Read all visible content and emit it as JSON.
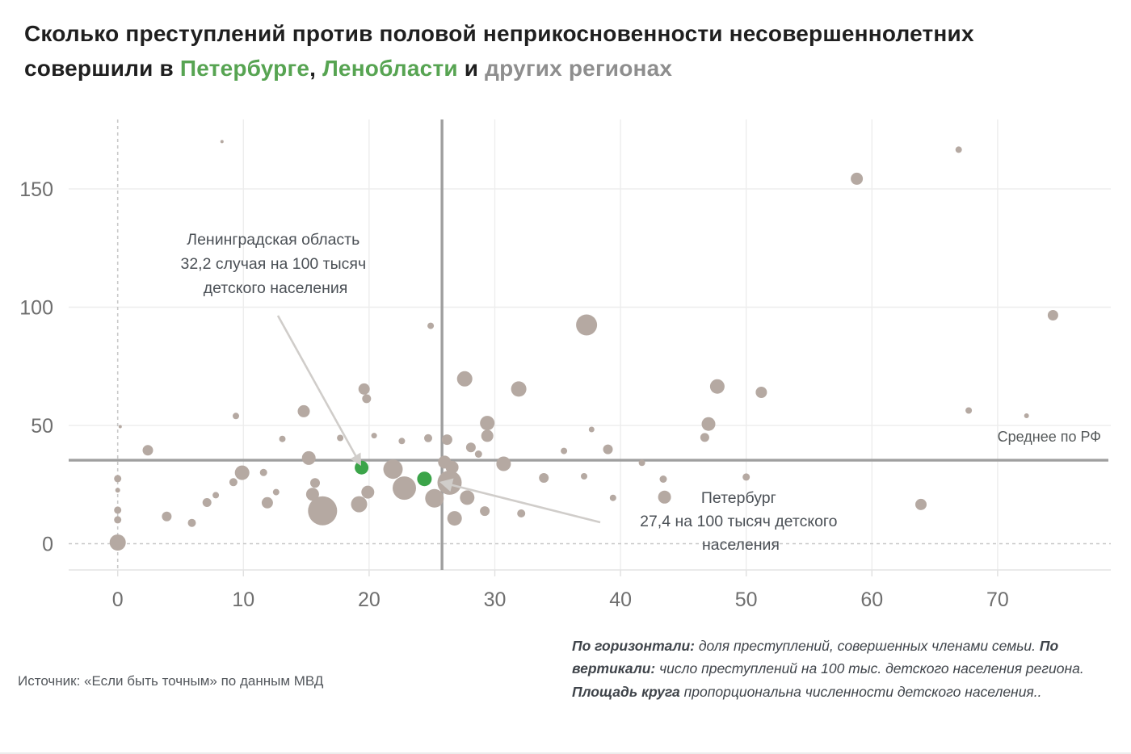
{
  "title": {
    "line1": "Сколько преступлений против половой неприкосновенности несовершеннолетних",
    "line2_parts": [
      {
        "text": "совершили в ",
        "color": "dark"
      },
      {
        "text": "Петербурге",
        "color": "green"
      },
      {
        "text": ", ",
        "color": "dark"
      },
      {
        "text": "Ленобласти",
        "color": "green"
      },
      {
        "text": " и ",
        "color": "dark"
      },
      {
        "text": "других регионах",
        "color": "gray"
      }
    ]
  },
  "annotations": {
    "leningrad": {
      "lines": [
        "Ленинградская область",
        "32,2 случая на 100 тысяч",
        "детского населения"
      ]
    },
    "petersburg": {
      "lines": [
        "Петербург",
        "27,4 на 100 тысяч детского",
        "населения"
      ]
    }
  },
  "footer": {
    "source": "Источник: «Если быть точным» по данным МВД",
    "note_parts": [
      {
        "text": "По горизонтали:",
        "bold": true
      },
      {
        "text": " доля преступлений, совершенных членами семьи. ",
        "bold": false
      },
      {
        "text": "По вертикали:",
        "bold": true
      },
      {
        "text": " число преступлений на 100 тыс. детского населения региона. ",
        "bold": false
      },
      {
        "text": "Площадь круга",
        "bold": true
      },
      {
        "text": " пропорциональна численности детского населения..",
        "bold": false
      }
    ]
  },
  "chart_data": {
    "type": "scatter",
    "title": "Преступления против половой неприкосновенности несовершеннолетних по регионам РФ",
    "xlabel": "доля преступлений, совершенных членами семьи, %",
    "ylabel": "число преступлений на 100 тыс. детского населения региона",
    "x_ticks": [
      0,
      10,
      20,
      30,
      40,
      50,
      60,
      70
    ],
    "y_ticks": [
      0,
      50,
      100,
      150
    ],
    "xlim": [
      -4,
      79
    ],
    "ylim": [
      -11,
      179
    ],
    "grid": true,
    "mean_x": 25.8,
    "mean_y": 35.3,
    "mean_label": "Среднее по РФ",
    "colors": {
      "bubble": "#b5a9a2",
      "highlight": "#3ba449",
      "mean_line": "#9f9f9f",
      "grid": "#ededed",
      "dashed": "#c8c8c8",
      "arrow": "#d0cdca"
    },
    "size_note": "площадь круга пропорциональна численности детского населения",
    "highlighted": [
      {
        "name": "Ленинградская область",
        "x": 19.4,
        "y": 32.2
      },
      {
        "name": "Петербург",
        "x": 24.4,
        "y": 27.4
      }
    ],
    "points": [
      {
        "x": 0,
        "y": 0.5,
        "r": 10
      },
      {
        "x": 0,
        "y": 10.1,
        "r": 4.5
      },
      {
        "x": 0,
        "y": 14.2,
        "r": 4.5
      },
      {
        "x": 0,
        "y": 22.6,
        "r": 3
      },
      {
        "x": 0,
        "y": 27.5,
        "r": 4.5
      },
      {
        "x": 0.2,
        "y": 49.5,
        "r": 2
      },
      {
        "x": 2.4,
        "y": 39.5,
        "r": 6.5
      },
      {
        "x": 3.9,
        "y": 11.5,
        "r": 6
      },
      {
        "x": 5.9,
        "y": 8.8,
        "r": 5
      },
      {
        "x": 7.1,
        "y": 17.4,
        "r": 5.5
      },
      {
        "x": 7.8,
        "y": 20.5,
        "r": 4
      },
      {
        "x": 8.3,
        "y": 170,
        "r": 2
      },
      {
        "x": 9.4,
        "y": 54,
        "r": 4
      },
      {
        "x": 9.9,
        "y": 30,
        "r": 9
      },
      {
        "x": 11.6,
        "y": 30.1,
        "r": 4.5
      },
      {
        "x": 9.2,
        "y": 26,
        "r": 5
      },
      {
        "x": 11.9,
        "y": 17.3,
        "r": 7
      },
      {
        "x": 12.6,
        "y": 21.8,
        "r": 4
      },
      {
        "x": 13.1,
        "y": 44.3,
        "r": 4
      },
      {
        "x": 14.8,
        "y": 56,
        "r": 7.5
      },
      {
        "x": 15.2,
        "y": 36.2,
        "r": 8.5
      },
      {
        "x": 15.7,
        "y": 25.7,
        "r": 6
      },
      {
        "x": 15.5,
        "y": 20.9,
        "r": 8
      },
      {
        "x": 16.3,
        "y": 13.9,
        "r": 18
      },
      {
        "x": 17.7,
        "y": 44.7,
        "r": 4
      },
      {
        "x": 19.2,
        "y": 16.7,
        "r": 10
      },
      {
        "x": 19.9,
        "y": 21.8,
        "r": 8
      },
      {
        "x": 19.6,
        "y": 65.4,
        "r": 7
      },
      {
        "x": 19.8,
        "y": 61.3,
        "r": 5.5
      },
      {
        "x": 20.4,
        "y": 45.7,
        "r": 3.5
      },
      {
        "x": 22.6,
        "y": 43.4,
        "r": 4
      },
      {
        "x": 24.7,
        "y": 44.6,
        "r": 5
      },
      {
        "x": 24.9,
        "y": 92.1,
        "r": 4
      },
      {
        "x": 21.9,
        "y": 31.5,
        "r": 12
      },
      {
        "x": 22.8,
        "y": 23.5,
        "r": 14.5
      },
      {
        "x": 24.4,
        "y": 27.4,
        "r": 9,
        "green": true,
        "name": "Петербург"
      },
      {
        "x": 25.2,
        "y": 19.2,
        "r": 11.5
      },
      {
        "x": 26.4,
        "y": 25.8,
        "r": 15
      },
      {
        "x": 26,
        "y": 34.5,
        "r": 8
      },
      {
        "x": 26.2,
        "y": 44,
        "r": 6.5
      },
      {
        "x": 26.6,
        "y": 32.3,
        "r": 8
      },
      {
        "x": 26.8,
        "y": 10.7,
        "r": 9
      },
      {
        "x": 27.8,
        "y": 19.5,
        "r": 9
      },
      {
        "x": 29.2,
        "y": 13.8,
        "r": 6
      },
      {
        "x": 27.6,
        "y": 69.7,
        "r": 9.5
      },
      {
        "x": 28.1,
        "y": 40.7,
        "r": 6
      },
      {
        "x": 28.7,
        "y": 37.9,
        "r": 4.5
      },
      {
        "x": 29.4,
        "y": 51,
        "r": 9
      },
      {
        "x": 29.4,
        "y": 45.6,
        "r": 7.5
      },
      {
        "x": 30.7,
        "y": 33.8,
        "r": 9
      },
      {
        "x": 31.9,
        "y": 65.4,
        "r": 9.5
      },
      {
        "x": 32.1,
        "y": 12.8,
        "r": 5
      },
      {
        "x": 33.9,
        "y": 27.8,
        "r": 6
      },
      {
        "x": 35.5,
        "y": 39.2,
        "r": 4
      },
      {
        "x": 37.3,
        "y": 92.5,
        "r": 13
      },
      {
        "x": 37.7,
        "y": 48.3,
        "r": 3.5
      },
      {
        "x": 37.1,
        "y": 28.5,
        "r": 4
      },
      {
        "x": 39,
        "y": 39.9,
        "r": 6
      },
      {
        "x": 39.4,
        "y": 19.4,
        "r": 4
      },
      {
        "x": 41.7,
        "y": 34.2,
        "r": 4
      },
      {
        "x": 43.4,
        "y": 27.3,
        "r": 4.5
      },
      {
        "x": 43.5,
        "y": 19.7,
        "r": 8
      },
      {
        "x": 46.7,
        "y": 44.9,
        "r": 5.5
      },
      {
        "x": 47,
        "y": 50.6,
        "r": 8.5
      },
      {
        "x": 47.7,
        "y": 66.5,
        "r": 9
      },
      {
        "x": 50,
        "y": 28.2,
        "r": 4.5
      },
      {
        "x": 51.2,
        "y": 64,
        "r": 7
      },
      {
        "x": 58.8,
        "y": 154.3,
        "r": 7.5
      },
      {
        "x": 63.9,
        "y": 16.6,
        "r": 7
      },
      {
        "x": 66.9,
        "y": 166.6,
        "r": 4
      },
      {
        "x": 67.7,
        "y": 56.3,
        "r": 4
      },
      {
        "x": 72.3,
        "y": 54.1,
        "r": 3
      },
      {
        "x": 74.4,
        "y": 96.6,
        "r": 6.5
      },
      {
        "x": 19.4,
        "y": 32.2,
        "r": 8.5,
        "green": true,
        "name": "Ленинградская область"
      }
    ]
  }
}
